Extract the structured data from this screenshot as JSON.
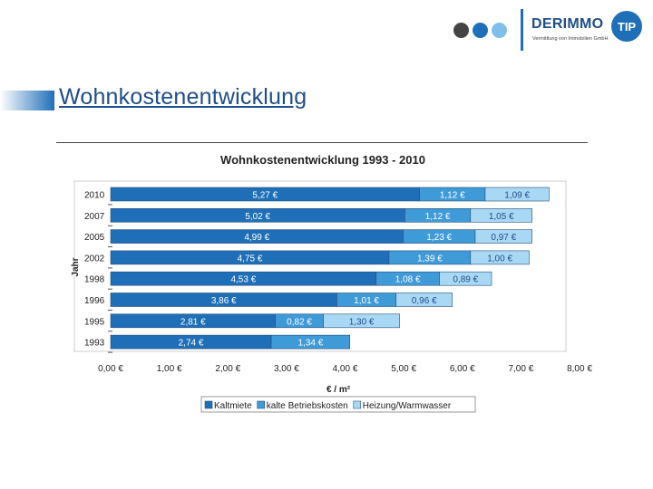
{
  "header": {
    "logo_text": "DERIMMO",
    "logo_badge": "TIP",
    "logo_sub": "Vermittlung von Immobilien GmbH",
    "dot_colors": [
      "#444444",
      "#1f6fb8",
      "#7fbfe8"
    ]
  },
  "page": {
    "title": "Wohnkostenentwicklung"
  },
  "chart_data": {
    "type": "bar",
    "orientation": "horizontal",
    "stacked": true,
    "title": "Wohnkostenentwicklung 1993 - 2010",
    "xlabel": "€ / m²",
    "ylabel": "Jahr",
    "xlim": [
      0,
      8
    ],
    "xticks": [
      "0,00 €",
      "1,00 €",
      "2,00 €",
      "3,00 €",
      "4,00 €",
      "5,00 €",
      "6,00 €",
      "7,00 €",
      "8,00 €"
    ],
    "categories": [
      "2010",
      "2007",
      "2005",
      "2002",
      "1998",
      "1996",
      "1995",
      "1993"
    ],
    "series": [
      {
        "name": "Kaltmiete",
        "color": "#1f6fb8",
        "values": [
          5.27,
          5.02,
          4.99,
          4.75,
          4.53,
          3.86,
          2.81,
          2.74
        ],
        "labels": [
          "5,27 €",
          "5,02 €",
          "4,99 €",
          "4,75 €",
          "4,53 €",
          "3,86 €",
          "2,81 €",
          "2,74 €"
        ]
      },
      {
        "name": "kalte Betriebskosten",
        "color": "#3f9ad8",
        "values": [
          1.12,
          1.12,
          1.23,
          1.39,
          1.08,
          1.01,
          0.82,
          1.34
        ],
        "labels": [
          "1,12 €",
          "1,12 €",
          "1,23 €",
          "1,39 €",
          "1,08 €",
          "1,01 €",
          "0,82 €",
          "1,34 €"
        ]
      },
      {
        "name": "Heizung/Warmwasser",
        "color": "#a9d8f5",
        "values": [
          1.09,
          1.05,
          0.97,
          1.0,
          0.89,
          0.96,
          1.3,
          0
        ],
        "labels": [
          "1,09 €",
          "1,05 €",
          "0,97 €",
          "1,00 €",
          "0,89 €",
          "0,96 €",
          "1,30 €",
          ""
        ]
      }
    ],
    "legend_position": "bottom",
    "grid": false
  }
}
